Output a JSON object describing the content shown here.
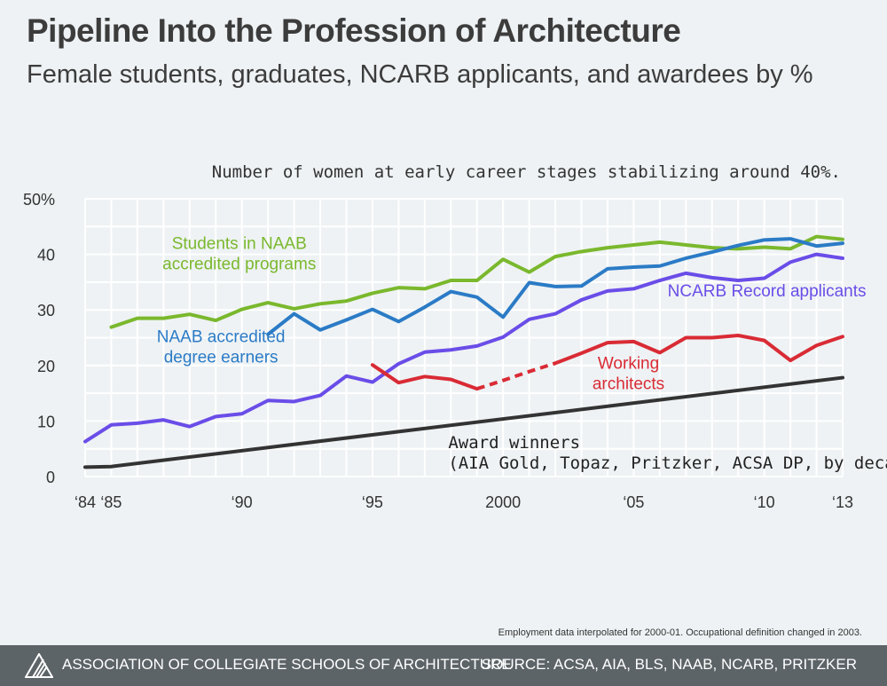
{
  "title": "Pipeline Into the Profession of Architecture",
  "subtitle": "Female students, graduates, NCARB applicants, and awardees by %",
  "annotation": "Number of women at early career stages stabilizing around 40%.",
  "note": "Employment data interpolated for 2000-01. Occupational definition changed in 2003.",
  "footer": {
    "org": "ASSOCIATION OF COLLEGIATE SCHOOLS OF ARCHITECTURE",
    "source": "SOURCE: ACSA, AIA, BLS, NAAB, NCARB, PRITZKER"
  },
  "colors": {
    "students": "#7ab82d",
    "degree": "#2b7bc6",
    "ncarb": "#6a4de8",
    "working": "#d92b35",
    "award": "#333333"
  },
  "chart_data": {
    "type": "line",
    "ylim": [
      0,
      50
    ],
    "xlim": [
      1984,
      2013
    ],
    "yticks": [
      {
        "v": 50,
        "label": "50%"
      },
      {
        "v": 40,
        "label": "40"
      },
      {
        "v": 30,
        "label": "30"
      },
      {
        "v": 20,
        "label": "20"
      },
      {
        "v": 10,
        "label": "10"
      },
      {
        "v": 0,
        "label": "0"
      }
    ],
    "xticks": [
      {
        "v": 1984,
        "label": "‘84"
      },
      {
        "v": 1985,
        "label": "‘85"
      },
      {
        "v": 1990,
        "label": "‘90"
      },
      {
        "v": 1995,
        "label": "‘95"
      },
      {
        "v": 2000,
        "label": "2000"
      },
      {
        "v": 2005,
        "label": "‘05"
      },
      {
        "v": 2010,
        "label": "‘10"
      },
      {
        "v": 2013,
        "label": "‘13"
      }
    ],
    "grid": true,
    "series": [
      {
        "key": "students",
        "name": "Students in NAAB accredited programs",
        "label_lines": [
          "Students in NAAB",
          "accredited programs"
        ],
        "x": [
          1985,
          1986,
          1987,
          1988,
          1989,
          1990,
          1991,
          1992,
          1993,
          1994,
          1995,
          1996,
          1997,
          1998,
          1999,
          2000,
          2001,
          2002,
          2003,
          2004,
          2005,
          2006,
          2007,
          2008,
          2009,
          2010,
          2011,
          2012,
          2013
        ],
        "y": [
          26.9,
          28.5,
          28.5,
          29.2,
          28.1,
          30.1,
          31.3,
          30.2,
          31.1,
          31.6,
          33.0,
          34.0,
          33.8,
          35.3,
          35.3,
          39.1,
          36.8,
          39.6,
          40.5,
          41.2,
          41.7,
          42.2,
          41.7,
          41.2,
          41.0,
          41.3,
          41.0,
          43.2,
          42.7
        ],
        "label_pos": {
          "x": 1989.9,
          "y": 41
        },
        "label_anchor": "middle"
      },
      {
        "key": "degree",
        "name": "NAAB accredited degree earners",
        "label_lines": [
          "NAAB accredited",
          "degree earners"
        ],
        "x": [
          1991,
          1992,
          1993,
          1994,
          1995,
          1996,
          1997,
          1998,
          1999,
          2000,
          2001,
          2002,
          2003,
          2004,
          2005,
          2006,
          2007,
          2008,
          2009,
          2010,
          2011,
          2012,
          2013
        ],
        "y": [
          25.6,
          29.3,
          26.4,
          28.2,
          30.1,
          27.9,
          30.5,
          33.3,
          32.3,
          28.7,
          34.9,
          34.2,
          34.3,
          37.4,
          37.7,
          37.9,
          39.3,
          40.4,
          41.6,
          42.6,
          42.8,
          41.5,
          42.0
        ],
        "label_pos": {
          "x": 1989.2,
          "y": 24.2
        },
        "label_anchor": "middle"
      },
      {
        "key": "ncarb",
        "name": "NCARB Record applicants",
        "label_lines": [
          "NCARB Record applicants"
        ],
        "x": [
          1984,
          1985,
          1986,
          1987,
          1988,
          1989,
          1990,
          1991,
          1992,
          1993,
          1994,
          1995,
          1996,
          1997,
          1998,
          1999,
          2000,
          2001,
          2002,
          2003,
          2004,
          2005,
          2006,
          2007,
          2008,
          2009,
          2010,
          2011,
          2012,
          2013
        ],
        "y": [
          6.3,
          9.3,
          9.6,
          10.2,
          9.0,
          10.8,
          11.3,
          13.7,
          13.5,
          14.6,
          18.1,
          17.0,
          20.3,
          22.4,
          22.8,
          23.5,
          25.1,
          28.3,
          29.3,
          31.8,
          33.4,
          33.8,
          35.3,
          36.6,
          35.8,
          35.3,
          35.7,
          38.6,
          40.0,
          39.3
        ],
        "label_pos": {
          "x": 2010.1,
          "y": 32.4
        },
        "label_anchor": "middle"
      },
      {
        "key": "working",
        "name": "Working architects",
        "label_lines": [
          "Working",
          "architects"
        ],
        "x": [
          1995,
          1996,
          1997,
          1998,
          1999,
          2000,
          2001,
          2002,
          2003,
          2004,
          2005,
          2006,
          2007,
          2008,
          2009,
          2010,
          2011,
          2012,
          2013
        ],
        "y": [
          20.1,
          16.9,
          18.0,
          17.5,
          15.8,
          17.3,
          18.9,
          20.4,
          22.2,
          24.1,
          24.3,
          22.3,
          25.0,
          25.0,
          25.4,
          24.5,
          20.9,
          23.6,
          25.2
        ],
        "dashed_between": [
          1999,
          2002
        ],
        "label_pos": {
          "x": 2004.8,
          "y": 19.4
        },
        "label_anchor": "middle"
      },
      {
        "key": "award",
        "name": "Award winners (AIA Gold, Topaz, Pritzker, ACSA DP, by decade)",
        "label_lines": [
          "Award winners",
          "(AIA Gold, Topaz, Pritzker, ACSA DP, by decade)"
        ],
        "x": [
          1984,
          1985,
          2013
        ],
        "y": [
          1.7,
          1.8,
          17.8
        ],
        "label_pos": {
          "x": 1997.9,
          "y": 5.1
        },
        "label_anchor": "start"
      }
    ]
  }
}
